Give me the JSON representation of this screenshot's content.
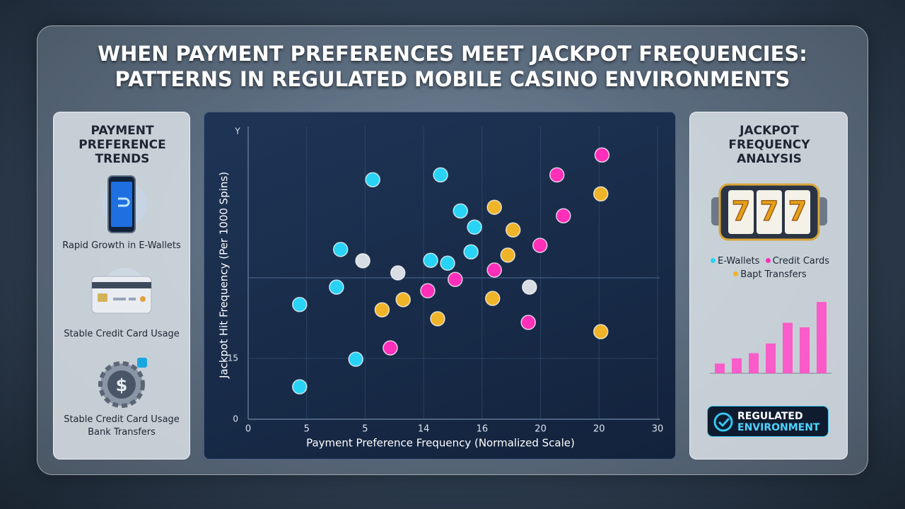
{
  "title_lines": [
    "WHEN PAYMENT PREFERENCES MEET JACKPOT FREQUENCIES:",
    "PATTERNS IN REGULATED MOBILE CASINO ENVIRONMENTS"
  ],
  "left_panel": {
    "title": "PAYMENT PREFERENCE TRENDS",
    "items": [
      "Rapid Growth in E-Wallets",
      "Stable Credit Card Usage",
      "Stable Credit Card Usage",
      "Bank Transfers"
    ]
  },
  "right_panel": {
    "title": "JACKPOT FREQUENCY ANALYSIS",
    "badge_lines": [
      "REGULATED",
      "ENVIRONMENT"
    ]
  },
  "chart_data": [
    {
      "type": "scatter",
      "x_label": "Payment Preference Frequency (Normalized Scale)",
      "y_label": "Jackpot Hit Frequency (Per 1000 Spins)",
      "y_axis_top_label": "Y",
      "xlim": [
        0,
        7
      ],
      "xticks": [
        0,
        {
          "value": 1,
          "label": "5"
        },
        {
          "value": 2,
          "label": "5"
        },
        {
          "value": 3,
          "label": "14"
        },
        {
          "value": 4,
          "label": "16"
        },
        {
          "value": 5,
          "label": "20"
        },
        {
          "value": 6,
          "label": "20"
        },
        {
          "value": 7,
          "label": "30"
        }
      ],
      "ylim": [
        0,
        71
      ],
      "yticks": [
        0,
        15
      ],
      "series": [
        {
          "name": "E-Wallets",
          "color": "#29d3f5",
          "x": [
            2.13,
            3.29,
            3.63,
            3.87,
            1.58,
            3.81,
            3.12,
            3.41,
            1.51,
            0.88,
            1.84,
            0.88
          ],
          "values": [
            59.1,
            60.3,
            51.4,
            47.4,
            41.9,
            41.3,
            39.2,
            38.5,
            32.6,
            28.3,
            14.8,
            8.0
          ]
        },
        {
          "name": "Credit Cards",
          "color": "#ff2fb9",
          "x": [
            6.05,
            5.28,
            5.39,
            4.99,
            4.21,
            3.54,
            3.07,
            4.79,
            2.43
          ],
          "values": [
            65.2,
            60.3,
            50.2,
            42.9,
            36.8,
            34.5,
            31.7,
            23.9,
            17.6
          ]
        },
        {
          "name": "Bapt Transfers",
          "color": "#f0b429",
          "x": [
            6.03,
            4.21,
            4.53,
            4.44,
            4.18,
            2.65,
            2.29,
            3.24,
            6.03
          ],
          "values": [
            55.6,
            52.3,
            46.7,
            40.5,
            29.8,
            29.5,
            27.0,
            24.8,
            21.6
          ]
        },
        {
          "name": null,
          "color": "#d8dde3",
          "x": [
            1.96,
            2.56,
            4.81
          ],
          "values": [
            39.1,
            36.1,
            32.6
          ]
        }
      ],
      "grid": true
    },
    {
      "type": "bar",
      "values": [
        15,
        23,
        31,
        46,
        78,
        71,
        110
      ],
      "ylim": [
        0,
        120
      ],
      "color": "#ff4fc8"
    }
  ]
}
